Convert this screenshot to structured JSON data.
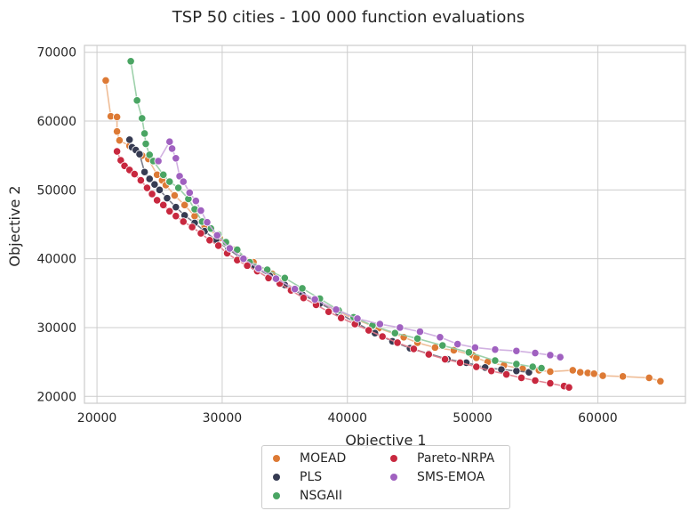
{
  "chart_data": {
    "type": "scatter",
    "title": "TSP 50 cities - 100 000 function evaluations",
    "xlabel": "Objective 1",
    "ylabel": "Objective 2",
    "xlim": [
      19000,
      67000
    ],
    "ylim": [
      19000,
      71000
    ],
    "xticks": [
      20000,
      30000,
      40000,
      50000,
      60000
    ],
    "yticks": [
      20000,
      30000,
      40000,
      50000,
      60000,
      70000
    ],
    "grid": true,
    "legend_position": "below-center",
    "series": [
      {
        "name": "MOEAD",
        "color": "#dd7a35",
        "line_color": "#edb68c",
        "points": [
          [
            20700,
            65900
          ],
          [
            21100,
            60700
          ],
          [
            21600,
            60600
          ],
          [
            21600,
            58500
          ],
          [
            21800,
            57200
          ],
          [
            22600,
            56400
          ],
          [
            23600,
            55000
          ],
          [
            24100,
            54500
          ],
          [
            24800,
            52200
          ],
          [
            25200,
            51400
          ],
          [
            25500,
            50700
          ],
          [
            26200,
            49200
          ],
          [
            27000,
            47800
          ],
          [
            27800,
            46200
          ],
          [
            28600,
            44800
          ],
          [
            29800,
            43000
          ],
          [
            31000,
            41300
          ],
          [
            32500,
            39500
          ],
          [
            34000,
            37800
          ],
          [
            35800,
            35600
          ],
          [
            37400,
            34000
          ],
          [
            39000,
            32600
          ],
          [
            40500,
            31300
          ],
          [
            42500,
            29900
          ],
          [
            44500,
            28600
          ],
          [
            45600,
            27800
          ],
          [
            47000,
            27100
          ],
          [
            48500,
            26700
          ],
          [
            50000,
            26000
          ],
          [
            50300,
            25600
          ],
          [
            51200,
            25000
          ],
          [
            52500,
            24500
          ],
          [
            54000,
            24000
          ],
          [
            55300,
            23800
          ],
          [
            56200,
            23600
          ],
          [
            58000,
            23800
          ],
          [
            58600,
            23500
          ],
          [
            59200,
            23400
          ],
          [
            59700,
            23300
          ],
          [
            60400,
            23000
          ],
          [
            62000,
            22900
          ],
          [
            64100,
            22700
          ],
          [
            65000,
            22200
          ]
        ]
      },
      {
        "name": "PLS",
        "color": "#363b52",
        "line_color": "#6b6f80",
        "points": [
          [
            22600,
            57300
          ],
          [
            22800,
            56200
          ],
          [
            23100,
            55800
          ],
          [
            23400,
            55200
          ],
          [
            23800,
            52600
          ],
          [
            24200,
            51600
          ],
          [
            24600,
            50800
          ],
          [
            25000,
            50000
          ],
          [
            25600,
            48800
          ],
          [
            26300,
            47500
          ],
          [
            27000,
            46300
          ],
          [
            27800,
            45200
          ],
          [
            28600,
            44000
          ],
          [
            29500,
            42700
          ],
          [
            30500,
            41400
          ],
          [
            31500,
            40100
          ],
          [
            32600,
            38800
          ],
          [
            33800,
            37500
          ],
          [
            35000,
            36200
          ],
          [
            36400,
            34800
          ],
          [
            37800,
            33500
          ],
          [
            39300,
            32100
          ],
          [
            40800,
            30600
          ],
          [
            42200,
            29200
          ],
          [
            43600,
            28000
          ],
          [
            45000,
            27000
          ],
          [
            46500,
            26200
          ],
          [
            48000,
            25400
          ],
          [
            49500,
            24900
          ],
          [
            51000,
            24200
          ],
          [
            52300,
            23900
          ],
          [
            53500,
            23700
          ],
          [
            54500,
            23500
          ]
        ]
      },
      {
        "name": "NSGAII",
        "color": "#4aa563",
        "line_color": "#93cca2",
        "points": [
          [
            22700,
            68700
          ],
          [
            23200,
            63000
          ],
          [
            23600,
            60400
          ],
          [
            23800,
            58200
          ],
          [
            23900,
            56700
          ],
          [
            24200,
            55100
          ],
          [
            24500,
            54200
          ],
          [
            25300,
            52200
          ],
          [
            25800,
            51200
          ],
          [
            26500,
            50300
          ],
          [
            27300,
            48700
          ],
          [
            27800,
            47200
          ],
          [
            28400,
            45400
          ],
          [
            29100,
            44400
          ],
          [
            29700,
            43500
          ],
          [
            30300,
            42400
          ],
          [
            31200,
            41300
          ],
          [
            32200,
            39500
          ],
          [
            33600,
            38400
          ],
          [
            35000,
            37200
          ],
          [
            36400,
            35700
          ],
          [
            37800,
            34200
          ],
          [
            39300,
            32500
          ],
          [
            40500,
            31500
          ],
          [
            42000,
            30300
          ],
          [
            43800,
            29200
          ],
          [
            45600,
            28400
          ],
          [
            47600,
            27400
          ],
          [
            49700,
            26400
          ],
          [
            51800,
            25200
          ],
          [
            53500,
            24700
          ],
          [
            54800,
            24300
          ],
          [
            55500,
            24100
          ]
        ]
      },
      {
        "name": "Pareto-NRPA",
        "color": "#c8283f",
        "line_color": "#e07a89",
        "points": [
          [
            21600,
            55600
          ],
          [
            21900,
            54300
          ],
          [
            22200,
            53500
          ],
          [
            22600,
            52900
          ],
          [
            23000,
            52300
          ],
          [
            23500,
            51400
          ],
          [
            24000,
            50300
          ],
          [
            24400,
            49400
          ],
          [
            24800,
            48500
          ],
          [
            25300,
            47800
          ],
          [
            25800,
            46900
          ],
          [
            26300,
            46200
          ],
          [
            26900,
            45400
          ],
          [
            27600,
            44600
          ],
          [
            28300,
            43700
          ],
          [
            29000,
            42700
          ],
          [
            29700,
            41900
          ],
          [
            30400,
            40800
          ],
          [
            31200,
            39800
          ],
          [
            32000,
            39000
          ],
          [
            32800,
            38200
          ],
          [
            33700,
            37200
          ],
          [
            34600,
            36400
          ],
          [
            35500,
            35400
          ],
          [
            36500,
            34300
          ],
          [
            37500,
            33300
          ],
          [
            38500,
            32300
          ],
          [
            39500,
            31400
          ],
          [
            40600,
            30500
          ],
          [
            41700,
            29600
          ],
          [
            42800,
            28700
          ],
          [
            44000,
            27800
          ],
          [
            45300,
            26900
          ],
          [
            46500,
            26100
          ],
          [
            47800,
            25400
          ],
          [
            49000,
            24900
          ],
          [
            50300,
            24300
          ],
          [
            51500,
            23700
          ],
          [
            52700,
            23200
          ],
          [
            53900,
            22700
          ],
          [
            55000,
            22300
          ],
          [
            56200,
            21900
          ],
          [
            57300,
            21500
          ],
          [
            57700,
            21300
          ]
        ]
      },
      {
        "name": "SMS-EMOA",
        "color": "#a061c0",
        "line_color": "#cca8de",
        "points": [
          [
            24900,
            54200
          ],
          [
            25800,
            57000
          ],
          [
            26000,
            56000
          ],
          [
            26300,
            54600
          ],
          [
            26600,
            52000
          ],
          [
            26900,
            51200
          ],
          [
            27400,
            49600
          ],
          [
            27900,
            48400
          ],
          [
            28300,
            47000
          ],
          [
            28800,
            45300
          ],
          [
            29600,
            43400
          ],
          [
            30600,
            41500
          ],
          [
            31700,
            40000
          ],
          [
            32900,
            38600
          ],
          [
            34300,
            37100
          ],
          [
            35800,
            35600
          ],
          [
            37400,
            34100
          ],
          [
            39100,
            32600
          ],
          [
            40800,
            31300
          ],
          [
            42600,
            30500
          ],
          [
            44200,
            30000
          ],
          [
            45800,
            29400
          ],
          [
            47400,
            28600
          ],
          [
            48800,
            27600
          ],
          [
            50200,
            27100
          ],
          [
            51800,
            26800
          ],
          [
            53500,
            26600
          ],
          [
            55000,
            26300
          ],
          [
            56200,
            26000
          ],
          [
            57000,
            25700
          ]
        ]
      }
    ]
  },
  "legend": {
    "entries": [
      {
        "label": "MOEAD",
        "color": "#dd7a35"
      },
      {
        "label": "PLS",
        "color": "#363b52"
      },
      {
        "label": "NSGAII",
        "color": "#4aa563"
      },
      {
        "label": "Pareto-NRPA",
        "color": "#c8283f"
      },
      {
        "label": "SMS-EMOA",
        "color": "#a061c0"
      }
    ]
  }
}
